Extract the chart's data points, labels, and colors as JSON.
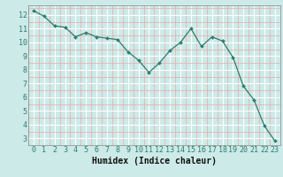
{
  "x": [
    0,
    1,
    2,
    3,
    4,
    5,
    6,
    7,
    8,
    9,
    10,
    11,
    12,
    13,
    14,
    15,
    16,
    17,
    18,
    19,
    20,
    21,
    22,
    23
  ],
  "y": [
    12.3,
    11.9,
    11.2,
    11.1,
    10.4,
    10.7,
    10.4,
    10.3,
    10.2,
    9.3,
    8.7,
    7.8,
    8.5,
    9.4,
    10.0,
    11.0,
    9.7,
    10.4,
    10.1,
    8.9,
    6.8,
    5.8,
    3.9,
    2.8
  ],
  "xlabel": "Humidex (Indice chaleur)",
  "line_color": "#2e7d6e",
  "marker_color": "#2e7d6e",
  "bg_color": "#cceae8",
  "major_grid_color": "#ffffff",
  "minor_grid_color": "#e8aaaa",
  "ylim": [
    2.5,
    12.7
  ],
  "xlim": [
    -0.5,
    23.5
  ],
  "yticks": [
    3,
    4,
    5,
    6,
    7,
    8,
    9,
    10,
    11,
    12
  ],
  "xticks": [
    0,
    1,
    2,
    3,
    4,
    5,
    6,
    7,
    8,
    9,
    10,
    11,
    12,
    13,
    14,
    15,
    16,
    17,
    18,
    19,
    20,
    21,
    22,
    23
  ],
  "xlabel_fontsize": 7,
  "tick_fontsize": 6
}
